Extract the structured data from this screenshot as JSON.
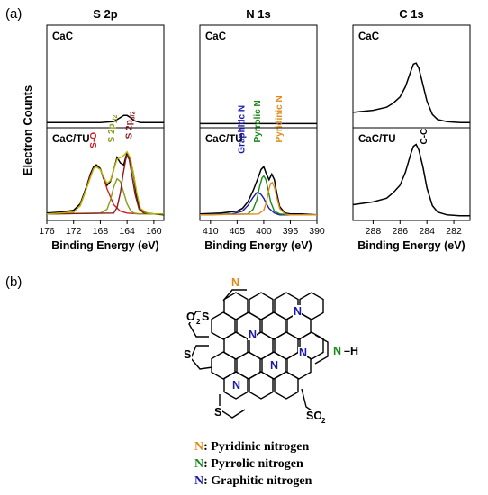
{
  "panel_labels": {
    "a": "(a)",
    "b": "(b)"
  },
  "y_axis_label": "Electron Counts",
  "chart_data": [
    {
      "type": "line",
      "title": "S 2p",
      "xlabel": "Binding Energy (eV)",
      "xlim": [
        176,
        158.5
      ],
      "xticks": [
        176,
        172,
        168,
        164,
        160
      ],
      "x_reversed": true,
      "upper": {
        "label": "CaC",
        "series": [
          {
            "name": "CaC",
            "color": "#000000",
            "x": [
              176,
              172,
              168,
              166,
              165.5,
              165,
              164.5,
              164,
              163.5,
              163,
              162,
              160,
              158.5
            ],
            "y": [
              0.05,
              0.05,
              0.05,
              0.06,
              0.08,
              0.1,
              0.12,
              0.12,
              0.1,
              0.07,
              0.05,
              0.05,
              0.05
            ]
          }
        ]
      },
      "lower": {
        "label": "CaC/TU",
        "annotations": [
          {
            "text": "S-O",
            "color": "#cc1f1f",
            "x": 168.6,
            "y": 0.78
          },
          {
            "text": "S 2p",
            "sub": "1/2",
            "color": "#8a9a1a",
            "x": 165.9,
            "y": 0.84
          },
          {
            "text": "S 2p",
            "sub": "3/2",
            "color": "#8a1a1a",
            "x": 163.3,
            "y": 0.88
          }
        ],
        "series": [
          {
            "name": "raw",
            "color": "#000000",
            "x": [
              176,
              174,
              172,
              171,
              170,
              169.5,
              169,
              168.6,
              168,
              167.5,
              167,
              166.5,
              166,
              165.5,
              165,
              164.5,
              164,
              163.5,
              163,
              162.5,
              162,
              161,
              160,
              158.5
            ],
            "y": [
              0.08,
              0.09,
              0.11,
              0.18,
              0.38,
              0.5,
              0.58,
              0.6,
              0.56,
              0.45,
              0.38,
              0.42,
              0.55,
              0.68,
              0.62,
              0.6,
              0.73,
              0.66,
              0.48,
              0.22,
              0.12,
              0.08,
              0.07,
              0.06
            ]
          },
          {
            "name": "S-O fit",
            "color": "#cc1f1f",
            "x": [
              176,
              172,
              171,
              170,
              169.5,
              169,
              168.6,
              168,
              167.5,
              167,
              166,
              165,
              164,
              162,
              160,
              158.5
            ],
            "y": [
              0.07,
              0.09,
              0.16,
              0.36,
              0.48,
              0.56,
              0.58,
              0.55,
              0.46,
              0.34,
              0.17,
              0.1,
              0.08,
              0.07,
              0.07,
              0.07
            ]
          },
          {
            "name": "S 2p1/2 fit",
            "color": "#8a9a1a",
            "x": [
              176,
              168,
              167,
              166.5,
              166,
              165.5,
              165,
              164.5,
              164,
              163.5,
              163,
              162,
              160,
              158.5
            ],
            "y": [
              0.07,
              0.08,
              0.12,
              0.22,
              0.36,
              0.45,
              0.42,
              0.3,
              0.18,
              0.11,
              0.08,
              0.07,
              0.07,
              0.07
            ]
          },
          {
            "name": "S 2p3/2 fit",
            "color": "#8a1a1a",
            "x": [
              176,
              166,
              165.5,
              165,
              164.6,
              164.2,
              164,
              163.7,
              163.3,
              162.8,
              162.2,
              161.5,
              160,
              158.5
            ],
            "y": [
              0.07,
              0.08,
              0.14,
              0.3,
              0.5,
              0.66,
              0.7,
              0.66,
              0.5,
              0.28,
              0.12,
              0.08,
              0.07,
              0.07
            ]
          },
          {
            "name": "envelope",
            "color": "#b5b500",
            "x": [
              176,
              172,
              171,
              170,
              169,
              168.6,
              168,
              167.5,
              167,
              166.5,
              166,
              165.5,
              165,
              164.5,
              164,
              163.5,
              163,
              162.5,
              162,
              161,
              160,
              158.5
            ],
            "y": [
              0.07,
              0.09,
              0.16,
              0.36,
              0.56,
              0.58,
              0.55,
              0.47,
              0.4,
              0.43,
              0.55,
              0.66,
              0.68,
              0.7,
              0.74,
              0.67,
              0.49,
              0.28,
              0.13,
              0.08,
              0.07,
              0.07
            ]
          }
        ]
      }
    },
    {
      "type": "line",
      "title": "N 1s",
      "xlabel": "Binding Energy (eV)",
      "xlim": [
        412,
        390
      ],
      "xticks": [
        410,
        405,
        400,
        395,
        390
      ],
      "x_reversed": true,
      "upper": {
        "label": "CaC",
        "series": [
          {
            "name": "CaC",
            "color": "#000000",
            "x": [
              412,
              405,
              400,
              395,
              390
            ],
            "y": [
              0.04,
              0.04,
              0.04,
              0.04,
              0.04
            ]
          }
        ]
      },
      "lower": {
        "label": "CaC/TU",
        "annotations": [
          {
            "text": "Graphitic N",
            "color": "#1a1aa8",
            "x": 403.6,
            "y": 0.72
          },
          {
            "text": "Pyrrolic N",
            "color": "#1a8a1a",
            "x": 400.7,
            "y": 0.84
          },
          {
            "text": "Pyridinic N",
            "color": "#e08a1a",
            "x": 396.6,
            "y": 0.84
          }
        ],
        "series": [
          {
            "name": "raw",
            "color": "#000000",
            "x": [
              412,
              408,
              405,
              404,
              403,
              402,
              401,
              400.5,
              400,
              399.5,
              399,
              398.5,
              398,
              397.5,
              397,
              396,
              395,
              393,
              390
            ],
            "y": [
              0.07,
              0.08,
              0.1,
              0.13,
              0.2,
              0.32,
              0.47,
              0.55,
              0.58,
              0.5,
              0.44,
              0.5,
              0.44,
              0.28,
              0.15,
              0.08,
              0.07,
              0.07,
              0.06
            ]
          },
          {
            "name": "Graphitic N fit",
            "color": "#1a1aa8",
            "x": [
              412,
              406,
              404,
              403,
              402,
              401.3,
              401,
              400.5,
              400,
              399.5,
              399,
              398,
              397,
              395,
              390
            ],
            "y": [
              0.06,
              0.07,
              0.1,
              0.16,
              0.25,
              0.3,
              0.3,
              0.28,
              0.24,
              0.18,
              0.13,
              0.08,
              0.06,
              0.06,
              0.06
            ]
          },
          {
            "name": "Pyrrolic N fit",
            "color": "#1a8a1a",
            "x": [
              412,
              403,
              402,
              401.3,
              400.8,
              400.3,
              400,
              399.6,
              399.2,
              398.7,
              398,
              397,
              395,
              390
            ],
            "y": [
              0.06,
              0.07,
              0.12,
              0.22,
              0.36,
              0.46,
              0.48,
              0.44,
              0.34,
              0.2,
              0.1,
              0.07,
              0.06,
              0.06
            ]
          },
          {
            "name": "Pyridinic N fit",
            "color": "#e08a1a",
            "x": [
              412,
              401,
              400,
              399.5,
              399,
              398.7,
              398.4,
              398,
              397.5,
              397,
              396,
              395,
              390
            ],
            "y": [
              0.06,
              0.07,
              0.11,
              0.2,
              0.34,
              0.4,
              0.41,
              0.36,
              0.24,
              0.13,
              0.07,
              0.06,
              0.06
            ]
          }
        ]
      }
    },
    {
      "type": "line",
      "title": "C 1s",
      "xlabel": "Binding Energy (eV)",
      "xlim": [
        289.5,
        280.8
      ],
      "xticks": [
        288,
        286,
        284,
        282
      ],
      "x_reversed": true,
      "upper": {
        "label": "CaC",
        "series": [
          {
            "name": "CaC",
            "color": "#000000",
            "x": [
              289.5,
              288,
              287,
              286.5,
              286,
              285.6,
              285.2,
              285,
              284.8,
              284.6,
              284.3,
              284,
              283.6,
              283.2,
              282.5,
              281.5,
              280.8
            ],
            "y": [
              0.15,
              0.17,
              0.2,
              0.24,
              0.3,
              0.4,
              0.55,
              0.62,
              0.63,
              0.58,
              0.42,
              0.26,
              0.13,
              0.08,
              0.06,
              0.05,
              0.05
            ]
          }
        ]
      },
      "lower": {
        "label": "CaC/TU",
        "annotations": [
          {
            "text": "C-C",
            "color": "#000000",
            "x": 284.0,
            "y": 0.82
          }
        ],
        "series": [
          {
            "name": "CaC/TU",
            "color": "#000000",
            "x": [
              289.5,
              288,
              287,
              286.5,
              286,
              285.6,
              285.2,
              285,
              284.8,
              284.6,
              284.3,
              284,
              283.6,
              283.2,
              282.5,
              281.5,
              280.8
            ],
            "y": [
              0.17,
              0.2,
              0.24,
              0.3,
              0.38,
              0.52,
              0.72,
              0.8,
              0.82,
              0.76,
              0.58,
              0.35,
              0.16,
              0.09,
              0.06,
              0.05,
              0.05
            ]
          }
        ]
      }
    }
  ],
  "structure": {
    "labels": [
      {
        "text": "N",
        "color": "#e08a1a",
        "kind": "pyridinic"
      },
      {
        "text": "N",
        "color": "#1a1aa8",
        "kind": "graphitic"
      },
      {
        "text": "N",
        "color": "#1a1aa8",
        "kind": "graphitic"
      },
      {
        "text": "N",
        "color": "#1a1aa8",
        "kind": "graphitic"
      },
      {
        "text": "N",
        "color": "#1a1aa8",
        "kind": "graphitic"
      },
      {
        "text": "N",
        "color": "#1a1aa8",
        "kind": "graphitic"
      },
      {
        "text": "N",
        "color": "#1a8a1a",
        "kind": "pyrrolic"
      },
      {
        "text": "–H",
        "color": "#000000",
        "kind": "hydrogen"
      },
      {
        "text": "O",
        "color": "#000000",
        "kind": "o2-left"
      },
      {
        "text": "2",
        "color": "#000000",
        "kind": "o2-left-sub"
      },
      {
        "text": "S",
        "color": "#000000",
        "kind": "s-left-top"
      },
      {
        "text": "S",
        "color": "#000000",
        "kind": "s-left-mid"
      },
      {
        "text": "S",
        "color": "#000000",
        "kind": "s-bottom"
      },
      {
        "text": "SO",
        "color": "#000000",
        "kind": "so2-right"
      },
      {
        "text": "2",
        "color": "#000000",
        "kind": "so2-right-sub"
      }
    ]
  },
  "legend": [
    {
      "symbol": "N",
      "color": "#e08a1a",
      "text": ": Pyridinic nitrogen"
    },
    {
      "symbol": "N",
      "color": "#1a8a1a",
      "text": ": Pyrrolic nitrogen"
    },
    {
      "symbol": "N",
      "color": "#1a1aa8",
      "text": ": Graphitic nitrogen"
    }
  ]
}
